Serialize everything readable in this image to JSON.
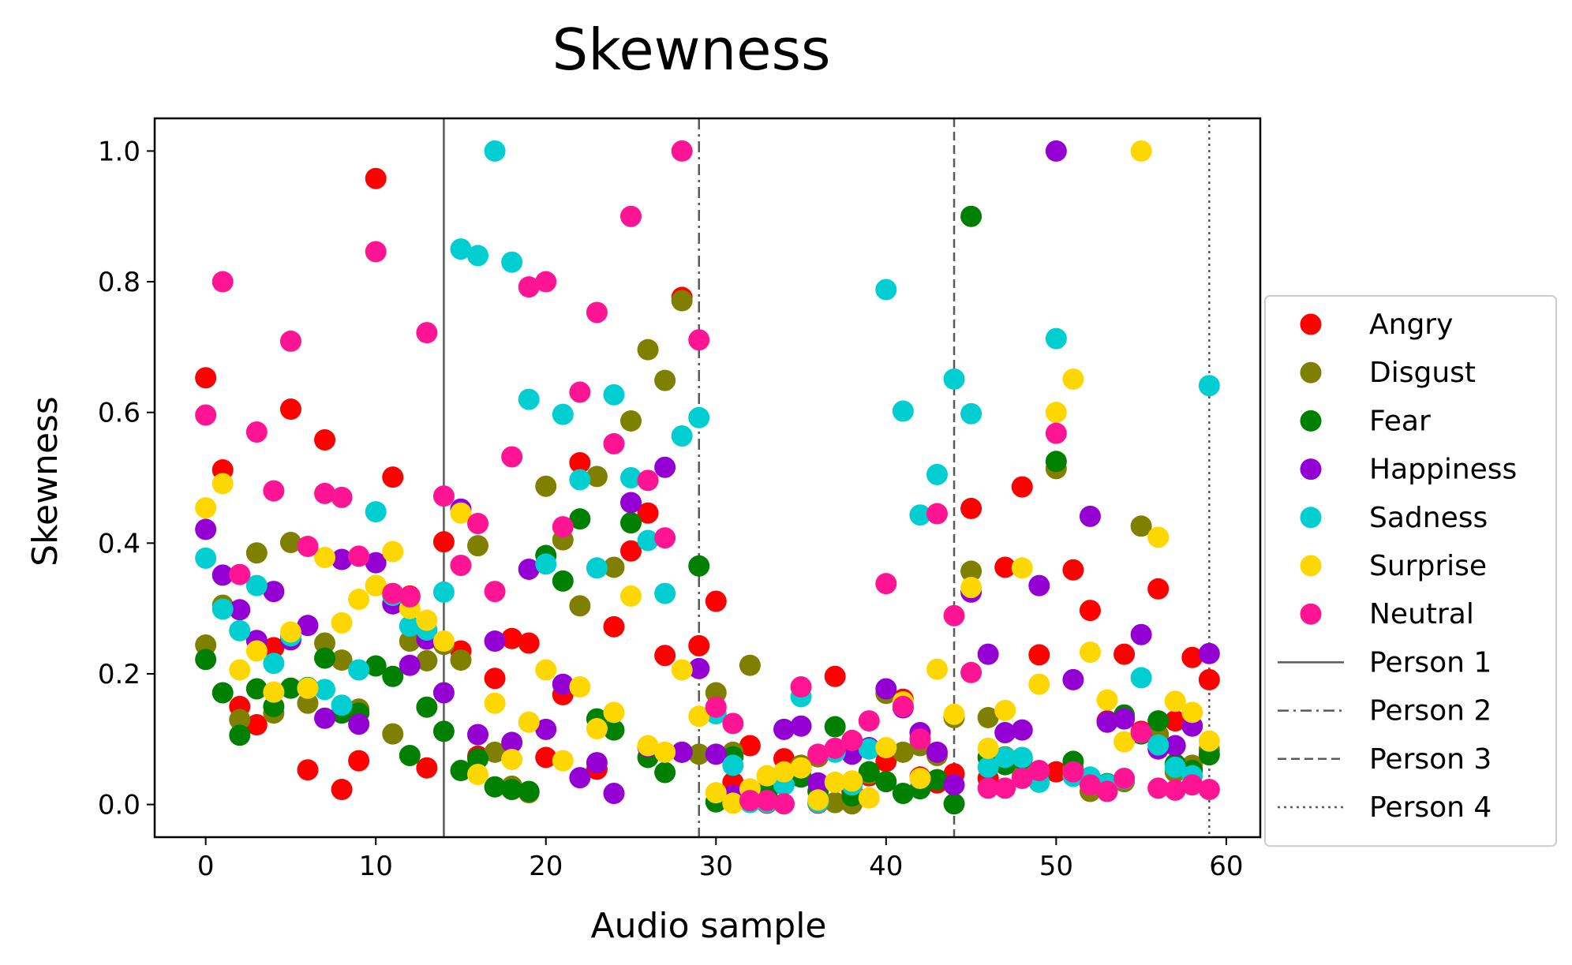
{
  "chart_data": {
    "type": "scatter",
    "title": "Skewness",
    "xlabel": "Audio sample",
    "ylabel": "Skewness",
    "xlim": [
      -3,
      62
    ],
    "ylim": [
      -0.05,
      1.05
    ],
    "xticks": [
      0,
      10,
      20,
      30,
      40,
      50,
      60
    ],
    "xtick_labels": [
      "0",
      "10",
      "20",
      "30",
      "40",
      "50",
      "60"
    ],
    "yticks": [
      0.0,
      0.2,
      0.4,
      0.6,
      0.8,
      1.0
    ],
    "ytick_labels": [
      "0.0",
      "0.2",
      "0.4",
      "0.6",
      "0.8",
      "1.0"
    ],
    "grid": false,
    "legend_position": "right, outside plot",
    "series": [
      {
        "name": "Angry",
        "color": "#ff0000",
        "x": [
          0,
          1,
          2,
          3,
          4,
          5,
          6,
          7,
          8,
          9,
          10,
          11,
          12,
          13,
          14,
          15,
          16,
          17,
          18,
          19,
          20,
          21,
          22,
          23,
          24,
          25,
          26,
          27,
          28,
          29,
          30,
          31,
          32,
          33,
          34,
          35,
          36,
          37,
          38,
          39,
          40,
          41,
          42,
          43,
          44,
          45,
          46,
          47,
          48,
          49,
          50,
          51,
          52,
          53,
          54,
          55,
          56,
          57,
          58,
          59
        ],
        "y": [
          0.653,
          0.512,
          0.15,
          0.122,
          0.24,
          0.605,
          0.053,
          0.558,
          0.023,
          0.067,
          0.958,
          0.501,
          0.319,
          0.056,
          0.402,
          0.235,
          0.074,
          0.193,
          0.254,
          0.247,
          0.072,
          0.168,
          0.523,
          0.054,
          0.272,
          0.388,
          0.446,
          0.228,
          0.776,
          0.243,
          0.311,
          0.034,
          0.09,
          0.002,
          0.07,
          0.055,
          0.002,
          0.196,
          0.02,
          0.044,
          0.066,
          0.161,
          0.042,
          0.033,
          0.047,
          0.453,
          0.04,
          0.363,
          0.486,
          0.229,
          0.05,
          0.359,
          0.297,
          0.128,
          0.23,
          0.112,
          0.33,
          0.128,
          0.225,
          0.191
        ]
      },
      {
        "name": "Disgust",
        "color": "#808000",
        "x": [
          0,
          1,
          2,
          3,
          4,
          5,
          6,
          7,
          8,
          9,
          10,
          11,
          12,
          13,
          14,
          15,
          16,
          17,
          18,
          19,
          20,
          21,
          22,
          23,
          24,
          25,
          26,
          27,
          28,
          29,
          30,
          31,
          32,
          33,
          34,
          35,
          36,
          37,
          38,
          39,
          40,
          41,
          42,
          43,
          44,
          45,
          46,
          47,
          48,
          49,
          50,
          51,
          52,
          53,
          54,
          55,
          56,
          57,
          58,
          59
        ],
        "y": [
          0.244,
          0.305,
          0.13,
          0.385,
          0.14,
          0.401,
          0.155,
          0.247,
          0.221,
          0.146,
          0.335,
          0.108,
          0.25,
          0.22,
          0.245,
          0.221,
          0.396,
          0.08,
          0.028,
          0.018,
          0.487,
          0.405,
          0.304,
          0.502,
          0.363,
          0.587,
          0.696,
          0.649,
          0.771,
          0.077,
          0.171,
          0.08,
          0.213,
          0.023,
          0.036,
          0.06,
          0.073,
          0.003,
          0.001,
          0.047,
          0.17,
          0.08,
          0.09,
          0.075,
          0.133,
          0.357,
          0.133,
          0.073,
          0.05,
          0.043,
          0.514,
          0.055,
          0.02,
          0.024,
          0.035,
          0.426,
          0.107,
          0.05,
          0.06,
          0.084
        ]
      },
      {
        "name": "Fear",
        "color": "#008000",
        "x": [
          0,
          1,
          2,
          3,
          4,
          5,
          6,
          7,
          8,
          9,
          10,
          11,
          12,
          13,
          14,
          15,
          16,
          17,
          18,
          19,
          20,
          21,
          22,
          23,
          24,
          25,
          26,
          27,
          28,
          29,
          30,
          31,
          32,
          33,
          34,
          35,
          36,
          37,
          38,
          39,
          40,
          41,
          42,
          43,
          44,
          45,
          46,
          47,
          48,
          49,
          50,
          51,
          52,
          53,
          54,
          55,
          56,
          57,
          58,
          59
        ],
        "y": [
          0.222,
          0.171,
          0.106,
          0.177,
          0.15,
          0.178,
          0.179,
          0.224,
          0.14,
          0.14,
          0.212,
          0.196,
          0.075,
          0.149,
          0.112,
          0.052,
          0.07,
          0.027,
          0.023,
          0.02,
          0.381,
          0.342,
          0.437,
          0.131,
          0.114,
          0.431,
          0.072,
          0.049,
          0.08,
          0.365,
          0.004,
          0.073,
          0.016,
          0.016,
          0.033,
          0.042,
          0.02,
          0.119,
          0.013,
          0.05,
          0.035,
          0.017,
          0.024,
          0.038,
          0.001,
          0.9,
          0.072,
          0.061,
          0.07,
          0.04,
          0.525,
          0.066,
          0.032,
          0.032,
          0.137,
          0.108,
          0.128,
          0.062,
          0.052,
          0.076
        ]
      },
      {
        "name": "Happiness",
        "color": "#9400d3",
        "x": [
          0,
          1,
          2,
          3,
          4,
          5,
          6,
          7,
          8,
          9,
          10,
          11,
          12,
          13,
          14,
          15,
          16,
          17,
          18,
          19,
          20,
          21,
          22,
          23,
          24,
          25,
          26,
          27,
          28,
          29,
          30,
          31,
          32,
          33,
          34,
          35,
          36,
          37,
          38,
          39,
          40,
          41,
          42,
          43,
          44,
          45,
          46,
          47,
          48,
          49,
          50,
          51,
          52,
          53,
          54,
          55,
          56,
          57,
          58,
          59
        ],
        "y": [
          0.421,
          0.351,
          0.298,
          0.251,
          0.326,
          0.252,
          0.274,
          0.132,
          0.375,
          0.123,
          0.37,
          0.307,
          0.213,
          0.253,
          0.171,
          0.452,
          0.107,
          0.25,
          0.095,
          0.36,
          0.115,
          0.184,
          0.041,
          0.064,
          0.017,
          0.462,
          0.088,
          0.516,
          0.08,
          0.208,
          0.077,
          0.014,
          0.005,
          0.005,
          0.115,
          0.12,
          0.033,
          0.083,
          0.077,
          0.087,
          0.177,
          0.148,
          0.11,
          0.08,
          0.03,
          0.325,
          0.23,
          0.11,
          0.114,
          0.335,
          1.0,
          0.191,
          0.441,
          0.126,
          0.131,
          0.26,
          0.085,
          0.09,
          0.12,
          0.231
        ]
      },
      {
        "name": "Sadness",
        "color": "#00ced1",
        "x": [
          0,
          1,
          2,
          3,
          4,
          5,
          6,
          7,
          8,
          9,
          10,
          11,
          12,
          13,
          14,
          15,
          16,
          17,
          18,
          19,
          20,
          21,
          22,
          23,
          24,
          25,
          26,
          27,
          28,
          29,
          30,
          31,
          32,
          33,
          34,
          35,
          36,
          37,
          38,
          39,
          40,
          41,
          42,
          43,
          44,
          45,
          46,
          47,
          48,
          49,
          50,
          51,
          52,
          53,
          54,
          55,
          56,
          57,
          58,
          59
        ],
        "y": [
          0.377,
          0.299,
          0.266,
          0.335,
          0.216,
          0.258,
          0.178,
          0.176,
          0.152,
          0.206,
          0.448,
          0.32,
          0.273,
          0.267,
          0.325,
          0.85,
          0.84,
          1.0,
          0.83,
          0.62,
          0.368,
          0.597,
          0.497,
          0.362,
          0.627,
          0.5,
          0.404,
          0.323,
          0.564,
          0.592,
          0.139,
          0.06,
          0.003,
          0.003,
          0.03,
          0.165,
          0.003,
          0.08,
          0.03,
          0.085,
          0.788,
          0.602,
          0.443,
          0.505,
          0.651,
          0.598,
          0.057,
          0.072,
          0.072,
          0.034,
          0.713,
          0.043,
          0.042,
          0.031,
          0.039,
          0.194,
          0.091,
          0.057,
          0.044,
          0.641
        ]
      },
      {
        "name": "Surprise",
        "color": "#ffd700",
        "x": [
          0,
          1,
          2,
          3,
          4,
          5,
          6,
          7,
          8,
          9,
          10,
          11,
          12,
          13,
          14,
          15,
          16,
          17,
          18,
          19,
          20,
          21,
          22,
          23,
          24,
          25,
          26,
          27,
          28,
          29,
          30,
          31,
          32,
          33,
          34,
          35,
          36,
          37,
          38,
          39,
          40,
          41,
          42,
          43,
          44,
          45,
          46,
          47,
          48,
          49,
          50,
          51,
          52,
          53,
          54,
          55,
          56,
          57,
          58,
          59
        ],
        "y": [
          0.454,
          0.491,
          0.206,
          0.235,
          0.172,
          0.264,
          0.178,
          0.378,
          0.278,
          0.314,
          0.335,
          0.387,
          0.3,
          0.282,
          0.25,
          0.446,
          0.046,
          0.155,
          0.069,
          0.126,
          0.206,
          0.067,
          0.18,
          0.116,
          0.141,
          0.319,
          0.09,
          0.08,
          0.206,
          0.135,
          0.018,
          0.002,
          0.024,
          0.044,
          0.05,
          0.056,
          0.007,
          0.034,
          0.036,
          0.01,
          0.087,
          0.157,
          0.04,
          0.207,
          0.138,
          0.332,
          0.086,
          0.144,
          0.362,
          0.184,
          0.6,
          0.651,
          0.233,
          0.16,
          0.096,
          1.0,
          0.409,
          0.158,
          0.141,
          0.097
        ]
      },
      {
        "name": "Neutral",
        "color": "#ff1493",
        "x": [
          0,
          1,
          2,
          3,
          4,
          5,
          6,
          7,
          8,
          9,
          10,
          11,
          12,
          13,
          14,
          15,
          16,
          17,
          18,
          19,
          20,
          21,
          22,
          23,
          24,
          25,
          26,
          27,
          28,
          29,
          30,
          31,
          32,
          33,
          34,
          35,
          36,
          37,
          38,
          39,
          40,
          41,
          42,
          43,
          44,
          45,
          46,
          47,
          48,
          49,
          50,
          51,
          52,
          53,
          54,
          55,
          56,
          57,
          58,
          59
        ],
        "y": [
          0.596,
          0.8,
          0.352,
          0.57,
          0.48,
          0.709,
          0.395,
          0.476,
          0.47,
          0.38,
          0.846,
          0.323,
          0.318,
          0.722,
          0.472,
          0.366,
          0.43,
          0.326,
          0.532,
          0.792,
          0.8,
          0.425,
          0.631,
          0.753,
          0.552,
          0.9,
          0.496,
          0.408,
          1.0,
          0.711,
          0.149,
          0.124,
          0.006,
          0.006,
          0.001,
          0.18,
          0.077,
          0.086,
          0.098,
          0.128,
          0.338,
          0.15,
          0.1,
          0.445,
          0.289,
          0.202,
          0.025,
          0.025,
          0.04,
          0.052,
          0.568,
          0.05,
          0.03,
          0.02,
          0.04,
          0.11,
          0.025,
          0.022,
          0.03,
          0.023
        ]
      }
    ],
    "vlines": [
      {
        "name": "Person 1",
        "x": 14,
        "style": "solid"
      },
      {
        "name": "Person 2",
        "x": 29,
        "style": "dashdot"
      },
      {
        "name": "Person 3",
        "x": 44,
        "style": "dashed"
      },
      {
        "name": "Person 4",
        "x": 59,
        "style": "dotted"
      }
    ]
  }
}
